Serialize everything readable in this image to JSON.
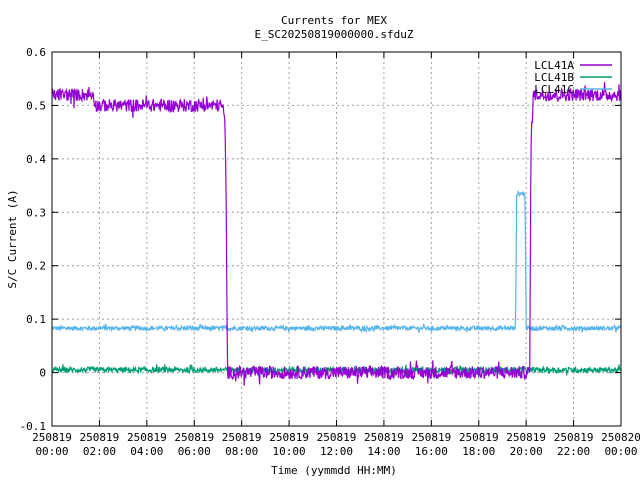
{
  "chart_data": {
    "type": "line",
    "title": "Currents for MEX",
    "subtitle": "E_SC20250819000000.sfduZ",
    "xlabel": "Time (yymmdd HH:MM)",
    "ylabel": "S/C Current (A)",
    "xlim": [
      0,
      24
    ],
    "ylim": [
      -0.1,
      0.6
    ],
    "grid": true,
    "legend_position": "top-right",
    "x_ticks": [
      {
        "value": 0,
        "line1": "250819",
        "line2": "00:00"
      },
      {
        "value": 2,
        "line1": "250819",
        "line2": "02:00"
      },
      {
        "value": 4,
        "line1": "250819",
        "line2": "04:00"
      },
      {
        "value": 6,
        "line1": "250819",
        "line2": "06:00"
      },
      {
        "value": 8,
        "line1": "250819",
        "line2": "08:00"
      },
      {
        "value": 10,
        "line1": "250819",
        "line2": "10:00"
      },
      {
        "value": 12,
        "line1": "250819",
        "line2": "12:00"
      },
      {
        "value": 14,
        "line1": "250819",
        "line2": "14:00"
      },
      {
        "value": 16,
        "line1": "250819",
        "line2": "16:00"
      },
      {
        "value": 18,
        "line1": "250819",
        "line2": "18:00"
      },
      {
        "value": 20,
        "line1": "250819",
        "line2": "20:00"
      },
      {
        "value": 22,
        "line1": "250819",
        "line2": "22:00"
      },
      {
        "value": 24,
        "line1": "250820",
        "line2": "00:00"
      }
    ],
    "y_ticks": [
      {
        "value": -0.1,
        "label": "-0.1"
      },
      {
        "value": 0,
        "label": "0"
      },
      {
        "value": 0.1,
        "label": "0.1"
      },
      {
        "value": 0.2,
        "label": "0.2"
      },
      {
        "value": 0.3,
        "label": "0.3"
      },
      {
        "value": 0.4,
        "label": "0.4"
      },
      {
        "value": 0.5,
        "label": "0.5"
      },
      {
        "value": 0.6,
        "label": "0.6"
      }
    ],
    "series": [
      {
        "name": "LCL41A",
        "color": "#9400d3",
        "noise": 0.012,
        "points": [
          [
            0,
            0.52
          ],
          [
            1.75,
            0.52
          ],
          [
            1.85,
            0.5
          ],
          [
            7.2,
            0.5
          ],
          [
            7.3,
            0.46
          ],
          [
            7.35,
            0.3
          ],
          [
            7.4,
            0.0
          ],
          [
            20.15,
            0.0
          ],
          [
            20.2,
            0.43
          ],
          [
            20.3,
            0.52
          ],
          [
            24,
            0.52
          ]
        ]
      },
      {
        "name": "LCL41B",
        "color": "#009e73",
        "noise": 0.005,
        "points": [
          [
            0,
            0.005
          ],
          [
            24,
            0.005
          ]
        ]
      },
      {
        "name": "LCL41C",
        "color": "#56b4e9",
        "noise": 0.004,
        "points": [
          [
            0,
            0.083
          ],
          [
            19.55,
            0.083
          ],
          [
            19.6,
            0.335
          ],
          [
            19.95,
            0.335
          ],
          [
            20.0,
            0.083
          ],
          [
            24,
            0.083
          ]
        ]
      }
    ]
  }
}
